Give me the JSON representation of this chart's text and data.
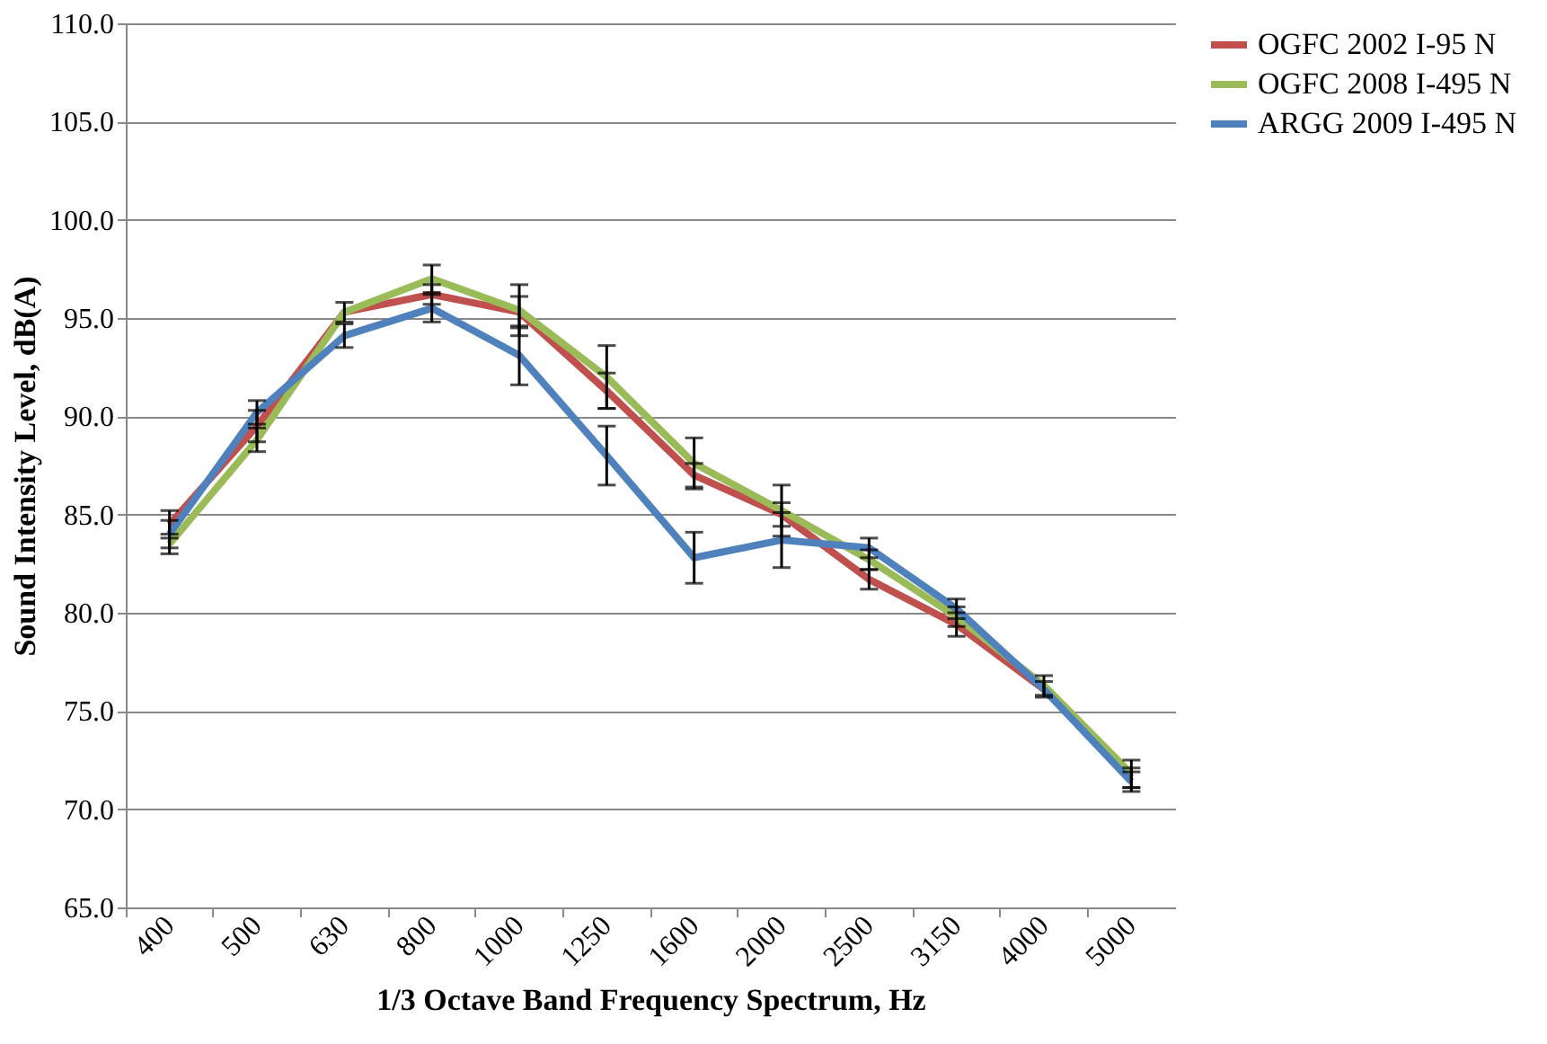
{
  "chart_data": {
    "type": "line",
    "xlabel": "1/3 Octave Band Frequency Spectrum, Hz",
    "ylabel": "Sound Intensity Level, dB(A)",
    "categories": [
      "400",
      "500",
      "630",
      "800",
      "1000",
      "1250",
      "1600",
      "2000",
      "2500",
      "3150",
      "4000",
      "5000"
    ],
    "series": [
      {
        "name": "OGFC 2002 I-95 N",
        "color": "#c0504d",
        "values": [
          84.5,
          89.5,
          95.3,
          96.2,
          95.3,
          91.3,
          87.0,
          85.0,
          81.7,
          79.4,
          76.1,
          71.6
        ],
        "errors": [
          0.7,
          0.8,
          null,
          0.5,
          0.8,
          0.9,
          0.6,
          0.6,
          0.5,
          0.6,
          0.4,
          0.5
        ]
      },
      {
        "name": "OGFC 2008 I-495 N",
        "color": "#9bbb59",
        "values": [
          83.5,
          88.8,
          95.3,
          97.0,
          95.4,
          92.0,
          87.6,
          85.2,
          82.7,
          79.8,
          76.3,
          71.8
        ],
        "errors": [
          0.5,
          0.6,
          0.5,
          0.7,
          1.3,
          1.6,
          1.3,
          1.3,
          0.5,
          0.5,
          0.5,
          0.7
        ]
      },
      {
        "name": "ARGG 2009 I-495 N",
        "color": "#4f81bd",
        "values": [
          84.0,
          90.2,
          94.1,
          95.5,
          93.1,
          88.0,
          82.8,
          83.7,
          83.3,
          80.2,
          76.1,
          71.4
        ],
        "errors": [
          0.7,
          0.6,
          0.6,
          0.7,
          1.5,
          1.5,
          1.3,
          1.4,
          0.5,
          0.5,
          null,
          0.5
        ]
      }
    ],
    "ylim": [
      65,
      110
    ],
    "yticks": [
      {
        "value": 65,
        "label": "65.0"
      },
      {
        "value": 70,
        "label": "70.0"
      },
      {
        "value": 75,
        "label": "75.0"
      },
      {
        "value": 80,
        "label": "80.0"
      },
      {
        "value": 85,
        "label": "85.0"
      },
      {
        "value": 90,
        "label": "90.0"
      },
      {
        "value": 95,
        "label": "95.0"
      },
      {
        "value": 100,
        "label": "100.0"
      },
      {
        "value": 105,
        "label": "105.0"
      },
      {
        "value": 110,
        "label": "110.0"
      }
    ],
    "grid": "y",
    "legend": "right",
    "marker": "none",
    "line_style": "solid"
  }
}
